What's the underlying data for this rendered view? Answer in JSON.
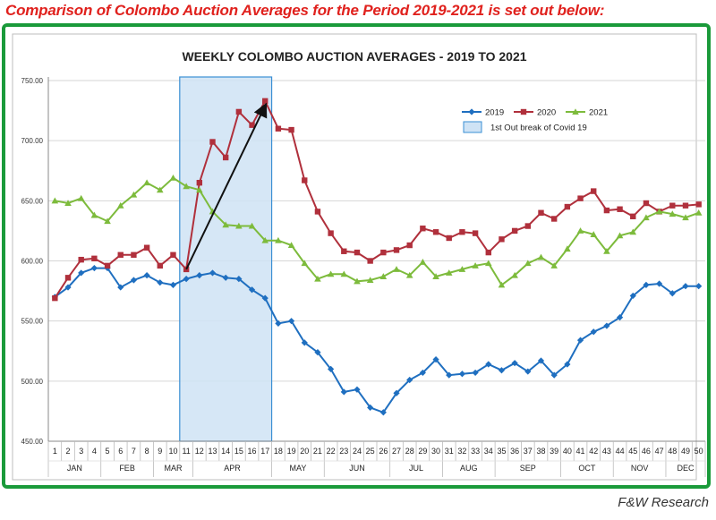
{
  "headline": "Comparison of Colombo Auction Averages for the Period 2019-2021 is set out below:",
  "footer": "F&W Research",
  "colors": {
    "frame": "#1a9a3a",
    "headline": "#e0211d",
    "s2019": "#1f6fc0",
    "s2020": "#b0303c",
    "s2021": "#7dbb3c",
    "covid_fill": "#cfe3f5",
    "covid_border": "#3a8fd4"
  },
  "chart_data": {
    "type": "line",
    "title": "WEEKLY COLOMBO AUCTION AVERAGES - 2019 TO 2021",
    "ylim": [
      450,
      750
    ],
    "yticks": [
      "450.00",
      "500.00",
      "550.00",
      "600.00",
      "650.00",
      "700.00",
      "750.00"
    ],
    "grid": true,
    "legend_position": "top-right",
    "x": [
      1,
      2,
      3,
      4,
      5,
      6,
      7,
      8,
      9,
      10,
      11,
      12,
      13,
      14,
      15,
      16,
      17,
      18,
      19,
      20,
      21,
      22,
      23,
      24,
      25,
      26,
      27,
      28,
      29,
      30,
      31,
      32,
      33,
      34,
      35,
      36,
      37,
      38,
      39,
      40,
      41,
      42,
      43,
      44,
      45,
      46,
      47,
      48,
      49,
      50
    ],
    "months": [
      {
        "label": "JAN",
        "start": 1,
        "end": 4
      },
      {
        "label": "FEB",
        "start": 5,
        "end": 8
      },
      {
        "label": "MAR",
        "start": 9,
        "end": 11
      },
      {
        "label": "APR",
        "start": 12,
        "end": 17
      },
      {
        "label": "MAY",
        "start": 18,
        "end": 21
      },
      {
        "label": "JUN",
        "start": 22,
        "end": 26
      },
      {
        "label": "JUL",
        "start": 27,
        "end": 30
      },
      {
        "label": "AUG",
        "start": 31,
        "end": 34
      },
      {
        "label": "SEP",
        "start": 35,
        "end": 39
      },
      {
        "label": "OCT",
        "start": 40,
        "end": 43
      },
      {
        "label": "NOV",
        "start": 44,
        "end": 47
      },
      {
        "label": "DEC",
        "start": 48,
        "end": 50
      }
    ],
    "series": [
      {
        "name": "2019",
        "marker": "diamond",
        "values": [
          570,
          578,
          590,
          594,
          594,
          578,
          584,
          588,
          582,
          580,
          585,
          588,
          590,
          586,
          585,
          576,
          569,
          548,
          550,
          532,
          524,
          510,
          491,
          493,
          478,
          474,
          490,
          501,
          507,
          518,
          505,
          506,
          507,
          514,
          509,
          515,
          508,
          517,
          505,
          514,
          534,
          541,
          546,
          553,
          571,
          580,
          581,
          573,
          579,
          579
        ]
      },
      {
        "name": "2020",
        "marker": "square",
        "values": [
          569,
          586,
          601,
          602,
          596,
          605,
          605,
          611,
          596,
          605,
          593,
          665,
          699,
          686,
          724,
          713,
          733,
          710,
          709,
          667,
          641,
          623,
          608,
          607,
          600,
          607,
          609,
          613,
          627,
          624,
          619,
          624,
          623,
          607,
          618,
          625,
          629,
          640,
          635,
          645,
          652,
          658,
          642,
          643,
          637,
          648,
          641,
          646,
          646,
          647
        ]
      },
      {
        "name": "2021",
        "marker": "triangle",
        "values": [
          650,
          648,
          652,
          638,
          633,
          646,
          655,
          665,
          659,
          669,
          662,
          659,
          641,
          630,
          629,
          629,
          617,
          617,
          613,
          598,
          585,
          589,
          589,
          583,
          584,
          587,
          593,
          588,
          599,
          587,
          590,
          593,
          596,
          598,
          580,
          588,
          598,
          603,
          596,
          610,
          625,
          622,
          608,
          621,
          624,
          636,
          641,
          639,
          636,
          640
        ]
      }
    ],
    "annotations": [
      {
        "type": "shaded_region",
        "label": "1st Out break of Covid 19",
        "x_start": 11,
        "x_end": 17
      },
      {
        "type": "arrow",
        "from_x": 11,
        "from_y": 593,
        "to_x": 17,
        "to_y": 729
      }
    ]
  }
}
